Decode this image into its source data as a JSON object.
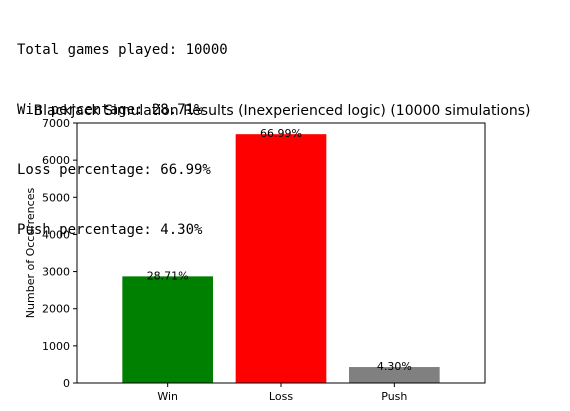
{
  "output": {
    "lines": [
      "Total games played: 10000",
      "Win percentage: 28.71%",
      "Loss percentage: 66.99%",
      "Push percentage: 4.30%"
    ]
  },
  "chart_data": {
    "type": "bar",
    "title": "Blackjack Simulation Results (Inexperienced logic) (10000 simulations)",
    "xlabel": "",
    "ylabel": "Number of Occurrences",
    "categories": [
      "Win",
      "Loss",
      "Push"
    ],
    "values": [
      2871,
      6699,
      430
    ],
    "labels": [
      "28.71%",
      "66.99%",
      "4.30%"
    ],
    "colors": [
      "#008000",
      "#ff0000",
      "#808080"
    ],
    "ylim": [
      0,
      7000
    ],
    "yticks": [
      0,
      1000,
      2000,
      3000,
      4000,
      5000,
      6000,
      7000
    ],
    "grid": false
  }
}
